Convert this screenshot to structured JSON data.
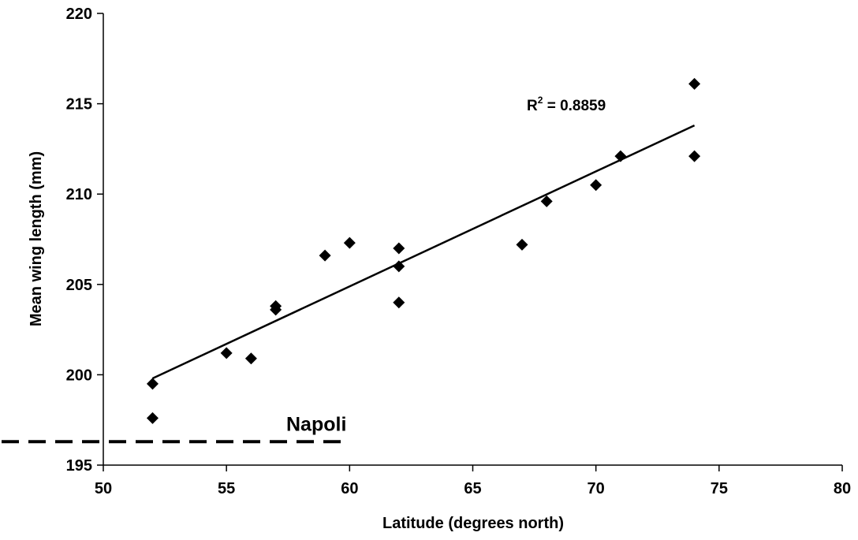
{
  "chart_data": {
    "type": "scatter",
    "title": "",
    "xlabel": "Latitude (degrees north)",
    "ylabel": "Mean wing length (mm)",
    "xlim": [
      50,
      80
    ],
    "ylim": [
      195,
      220
    ],
    "xticks": [
      "50",
      "55",
      "60",
      "65",
      "70",
      "75",
      "80"
    ],
    "yticks": [
      "195",
      "200",
      "205",
      "210",
      "215",
      "220"
    ],
    "grid": false,
    "marker": "diamond",
    "points": [
      {
        "x": 52,
        "y": 199.5
      },
      {
        "x": 52,
        "y": 197.6
      },
      {
        "x": 55,
        "y": 201.2
      },
      {
        "x": 56,
        "y": 200.9
      },
      {
        "x": 57,
        "y": 203.8
      },
      {
        "x": 57,
        "y": 203.6
      },
      {
        "x": 59,
        "y": 206.6
      },
      {
        "x": 60,
        "y": 207.3
      },
      {
        "x": 62,
        "y": 207.0
      },
      {
        "x": 62,
        "y": 206.0
      },
      {
        "x": 62,
        "y": 204.0
      },
      {
        "x": 67,
        "y": 207.2
      },
      {
        "x": 68,
        "y": 209.6
      },
      {
        "x": 70,
        "y": 210.5
      },
      {
        "x": 71,
        "y": 212.1
      },
      {
        "x": 74,
        "y": 216.1
      },
      {
        "x": 74,
        "y": 212.1
      }
    ],
    "trendline": {
      "x": [
        52,
        74
      ],
      "y": [
        199.8,
        213.8
      ],
      "label_prefix": "R",
      "label_sup": "2",
      "label_value": " = 0.8859"
    },
    "reference_line": {
      "label": "Napoli",
      "y": 196.3,
      "x_end": 59.7,
      "style": "dashed"
    }
  }
}
